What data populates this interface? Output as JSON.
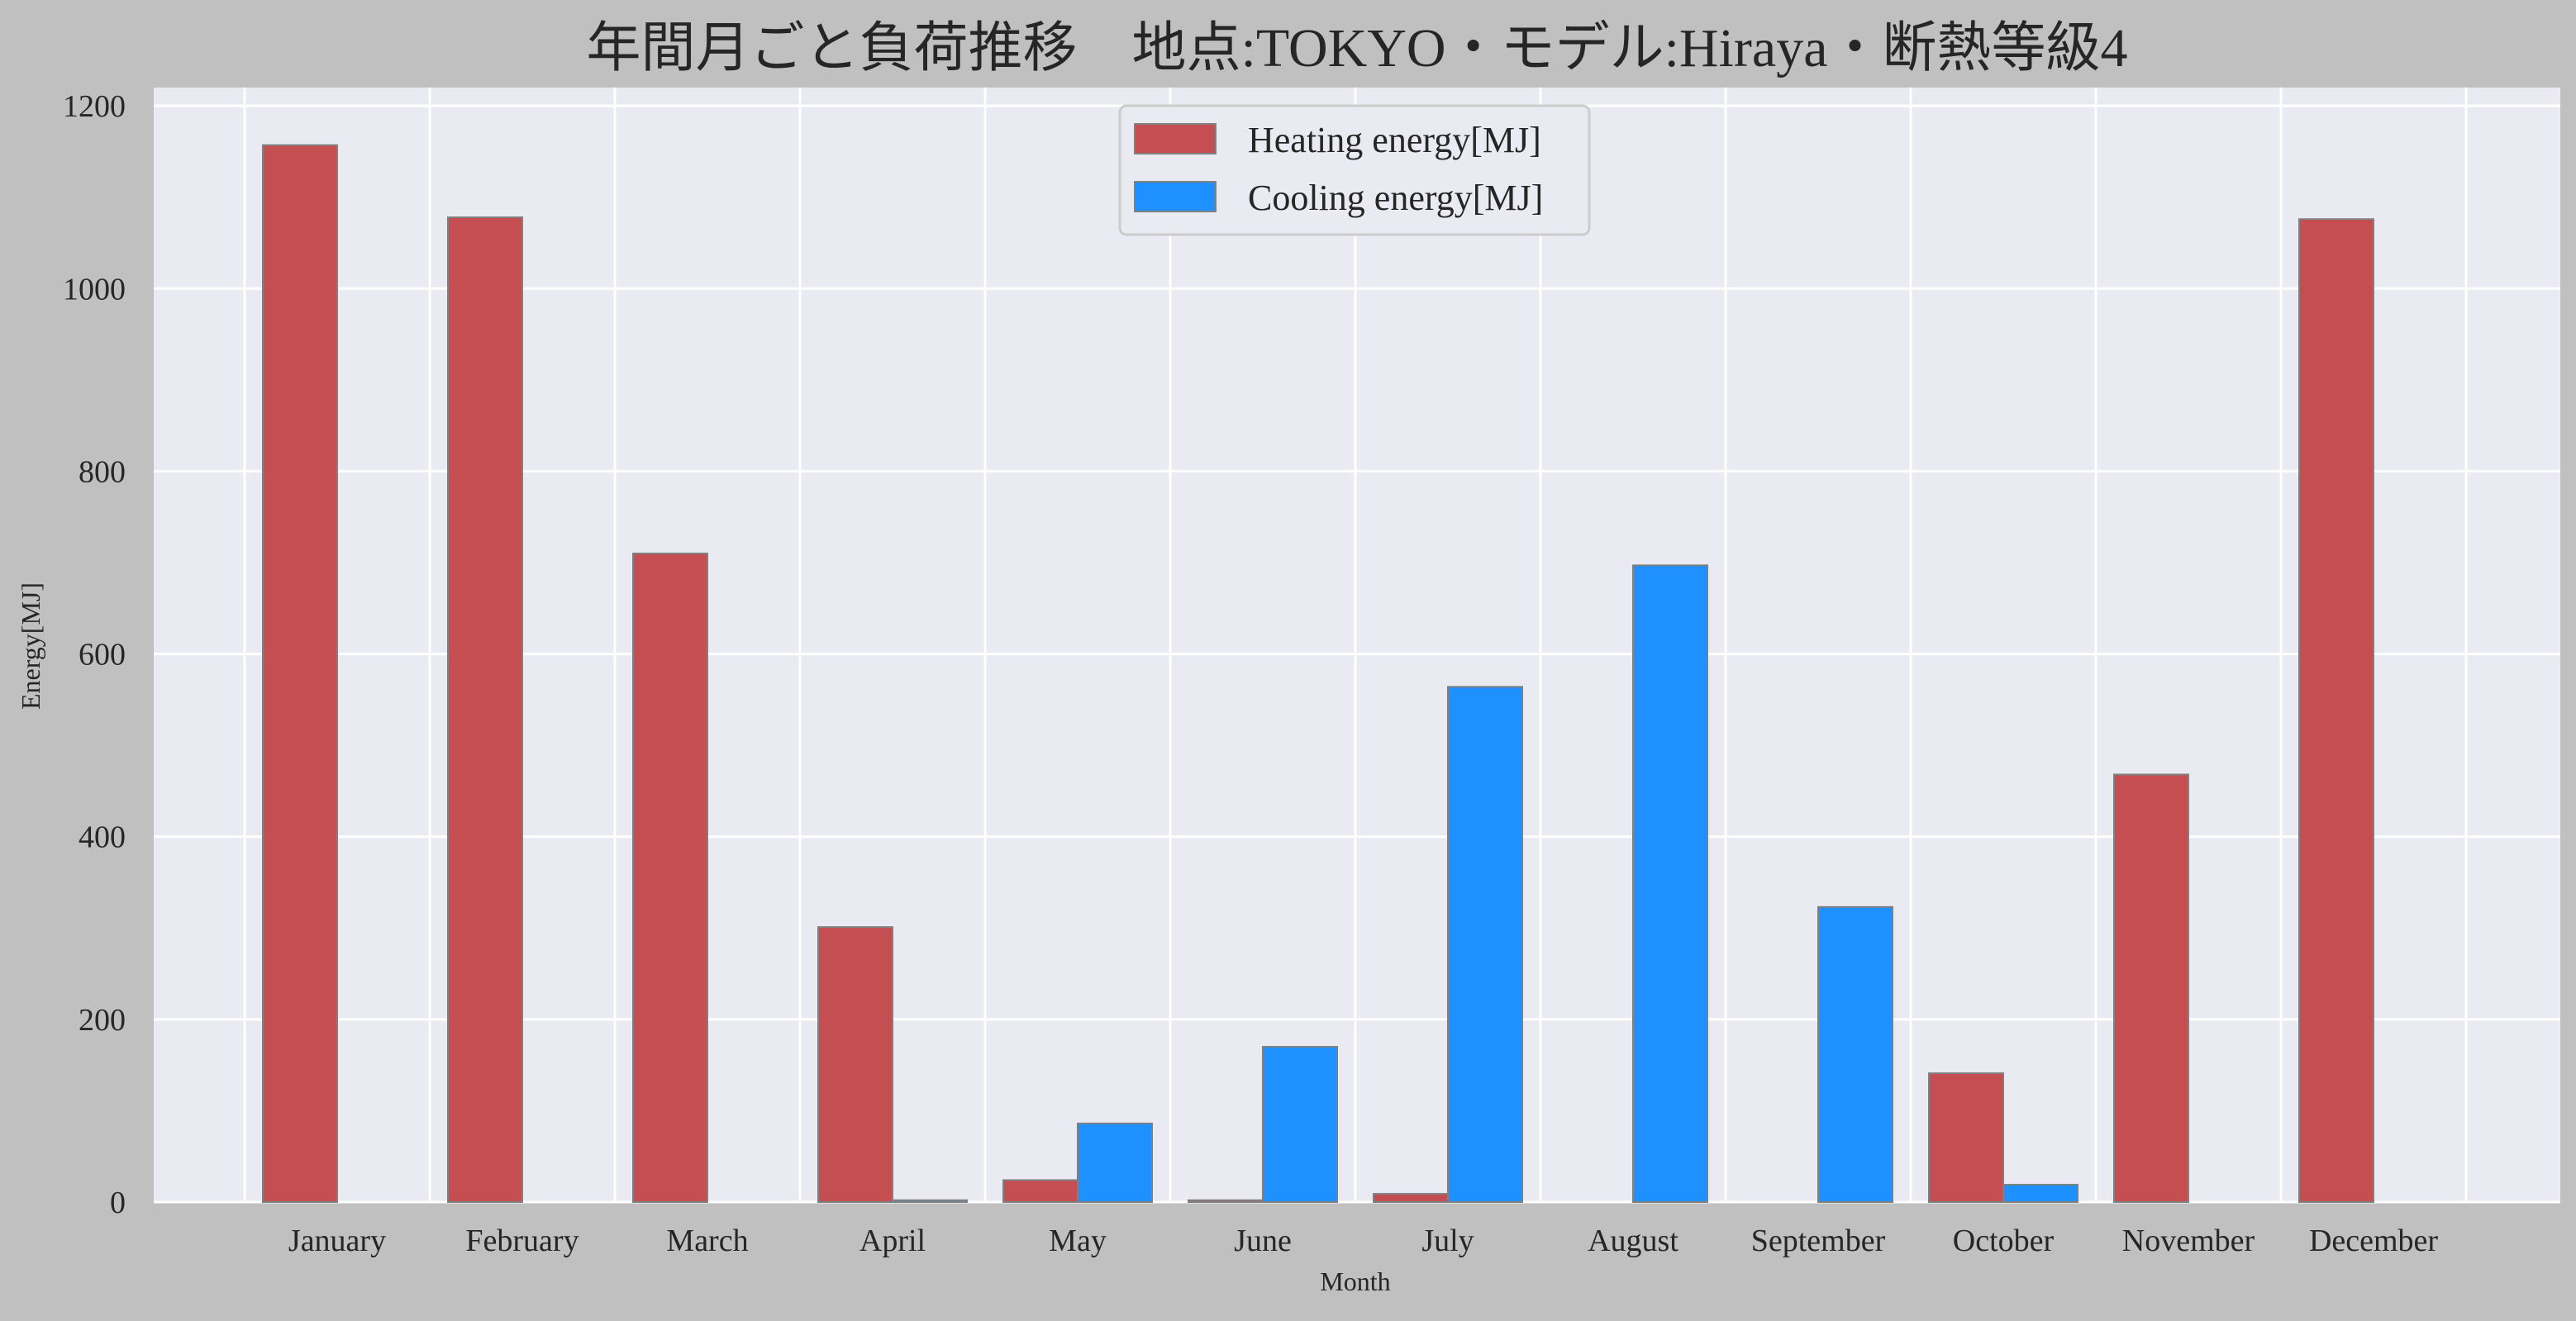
{
  "chart_data": {
    "type": "bar",
    "title": "年間月ごと負荷推移　地点:TOKYO・モデル:Hiraya・断熱等級4",
    "xlabel": "Month",
    "ylabel": "Energy[MJ]",
    "categories": [
      "January",
      "February",
      "March",
      "April",
      "May",
      "June",
      "July",
      "August",
      "September",
      "October",
      "November",
      "December"
    ],
    "series": [
      {
        "name": "Heating energy[MJ]",
        "color": "#c44e52",
        "values": [
          1157,
          1078,
          710,
          301,
          24,
          2,
          9,
          0,
          0,
          141,
          468,
          1076
        ]
      },
      {
        "name": "Cooling energy[MJ]",
        "color": "#1e90ff",
        "values": [
          0,
          0,
          0,
          2,
          86,
          170,
          564,
          697,
          323,
          19,
          0,
          0
        ]
      }
    ],
    "ylim": [
      0,
      1220
    ],
    "yticks": [
      0,
      200,
      400,
      600,
      800,
      1000,
      1200
    ],
    "grid": true,
    "legend_position": "top-center",
    "colors": {
      "figure_background": "#c0c0c0",
      "plot_background": "#eaeaf2",
      "grid": "#ffffff",
      "bar_edge": "#808080"
    }
  }
}
